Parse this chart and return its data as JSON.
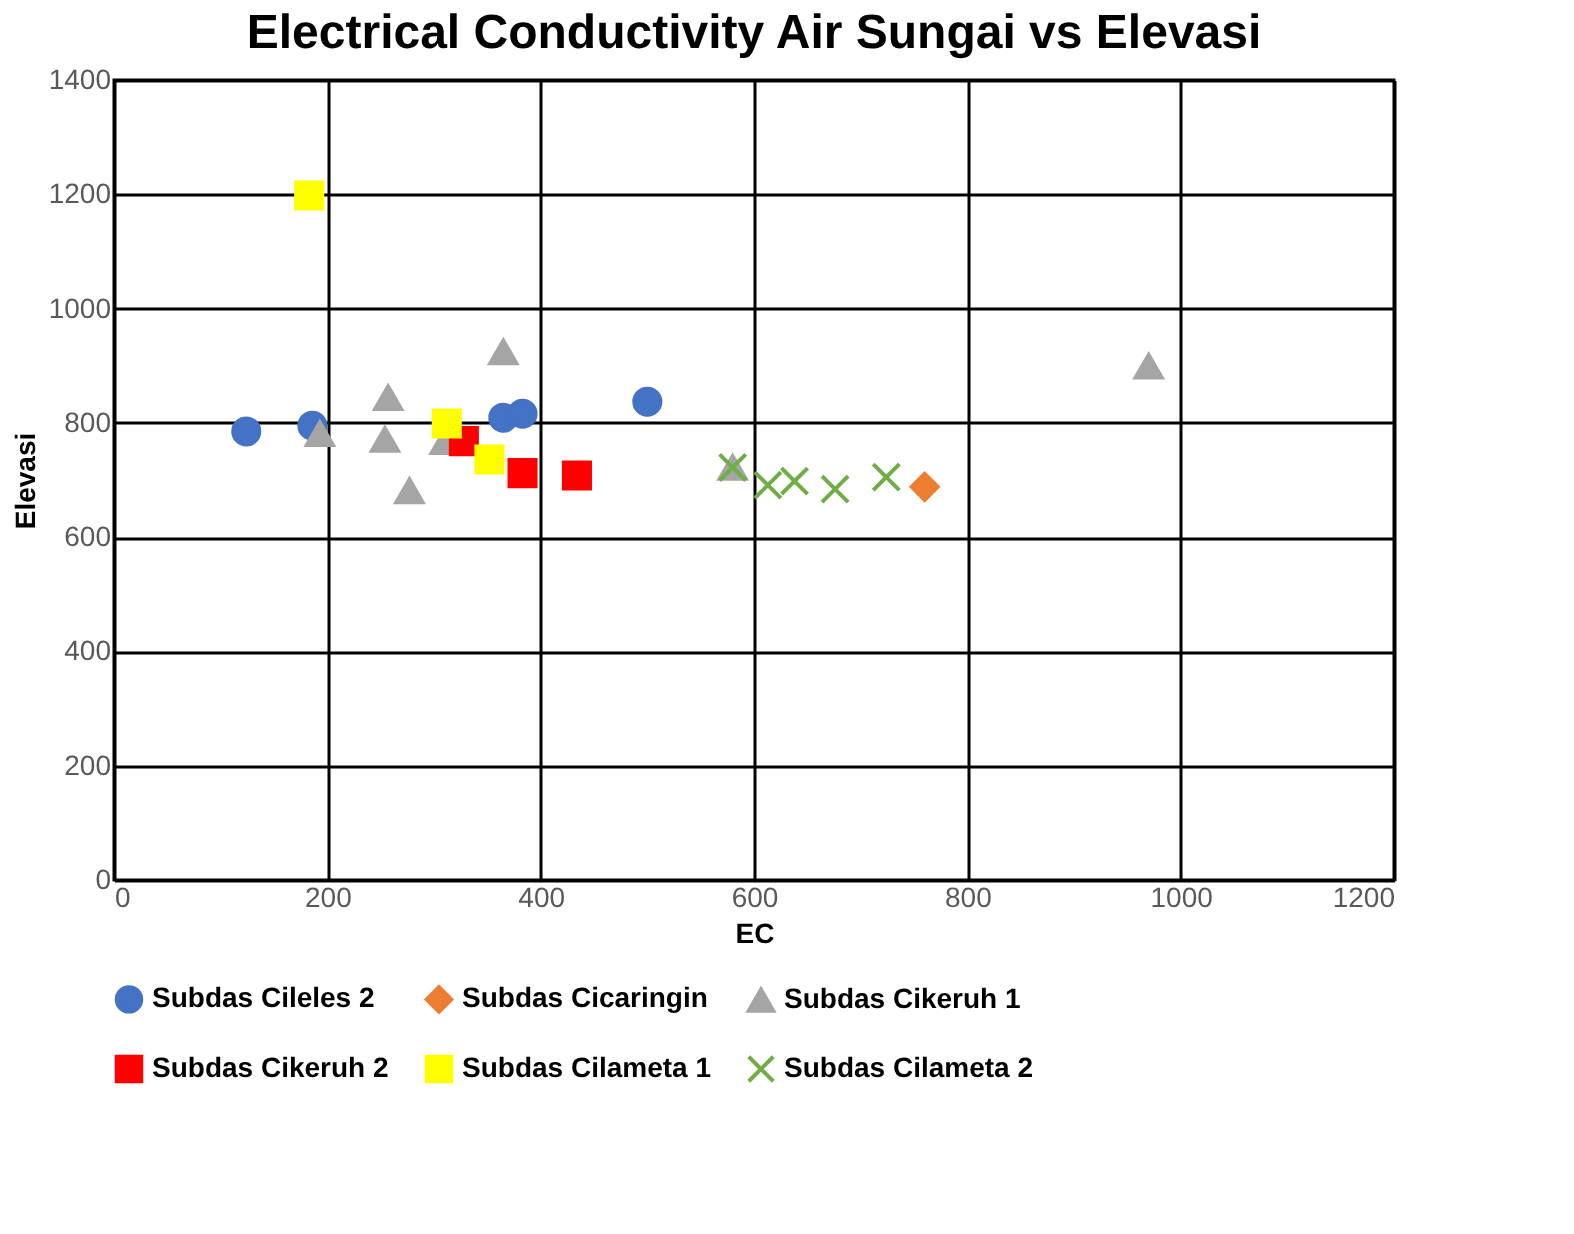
{
  "chart_data": {
    "type": "scatter",
    "title": "Electrical Conductivity Air Sungai vs Elevasi",
    "xlabel": "EC",
    "ylabel": "Elevasi",
    "xlim": [
      0,
      1200
    ],
    "xticks": [
      0,
      200,
      400,
      600,
      800,
      1000,
      1200
    ],
    "ylim": [
      0,
      1400
    ],
    "yticks": [
      0,
      200,
      400,
      600,
      800,
      1000,
      1200,
      1400
    ],
    "grid": true,
    "legend": "bottom",
    "series": [
      {
        "name": "Subdas Cileles 2",
        "color": "#4472c4",
        "marker": "circle",
        "x": [
          124,
          186,
          365,
          383,
          500
        ],
        "values": [
          785,
          795,
          809,
          816,
          837
        ]
      },
      {
        "name": "Subdas Cicaringin",
        "color": "#ed7d31",
        "marker": "diamond",
        "x": [
          760
        ],
        "values": [
          688
        ]
      },
      {
        "name": "Subdas Cikeruh 1",
        "color": "#a5a5a5",
        "marker": "triangle",
        "x": [
          193,
          257,
          254,
          277,
          365,
          310,
          580,
          970
        ],
        "values": [
          781,
          844,
          771,
          681,
          924,
          767,
          722,
          899
        ]
      },
      {
        "name": "Subdas Cikeruh 2",
        "color": "#ff0000",
        "marker": "square",
        "x": [
          328,
          383,
          434
        ],
        "values": [
          768,
          712,
          708
        ]
      },
      {
        "name": "Subdas Cilameta 1",
        "color": "#ffff00",
        "marker": "square",
        "x": [
          183,
          312,
          352
        ],
        "values": [
          1198,
          799,
          736
        ]
      },
      {
        "name": "Subdas Cilameta 2",
        "color": "#70ad47",
        "marker": "cross",
        "x": [
          580,
          613,
          638,
          676,
          724
        ],
        "values": [
          722,
          691,
          698,
          684,
          705
        ]
      }
    ]
  }
}
